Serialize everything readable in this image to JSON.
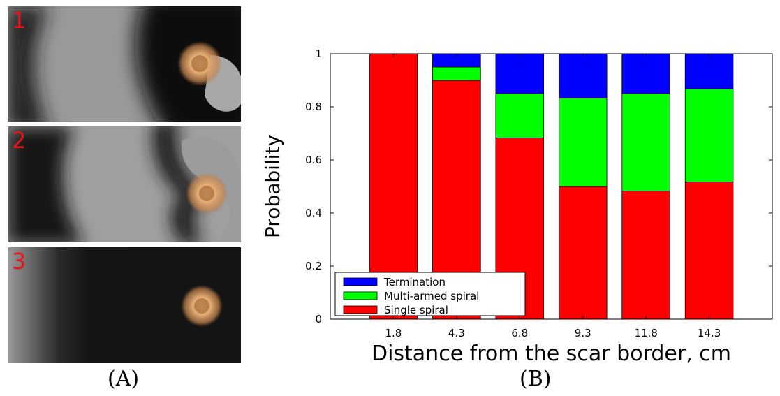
{
  "panels": [
    {
      "number": "1"
    },
    {
      "number": "2"
    },
    {
      "number": "3"
    }
  ],
  "captions": {
    "a": "(A)",
    "b": "(B)"
  },
  "chart_data": {
    "type": "bar",
    "stacked": true,
    "title": "",
    "xlabel": "Distance from the scar border, cm",
    "ylabel": "Probability",
    "categories": [
      "1.8",
      "4.3",
      "6.8",
      "9.3",
      "11.8",
      "14.3"
    ],
    "ylim": [
      0,
      1
    ],
    "yticks": [
      "0",
      "0.2",
      "0.4",
      "0.6",
      "0.8",
      "1"
    ],
    "grid": false,
    "legend_position": "bottom-left",
    "series": [
      {
        "name": "Single spiral",
        "color": "#ff0000",
        "values": [
          1.0,
          0.9,
          0.683,
          0.5,
          0.483,
          0.517
        ]
      },
      {
        "name": "Multi-armed spiral",
        "color": "#00ff00",
        "values": [
          0.0,
          0.05,
          0.167,
          0.333,
          0.367,
          0.35
        ]
      },
      {
        "name": "Termination",
        "color": "#0000ff",
        "values": [
          0.0,
          0.05,
          0.15,
          0.167,
          0.15,
          0.133
        ]
      }
    ],
    "legend_order": [
      "Termination",
      "Multi-armed spiral",
      "Single spiral"
    ]
  }
}
